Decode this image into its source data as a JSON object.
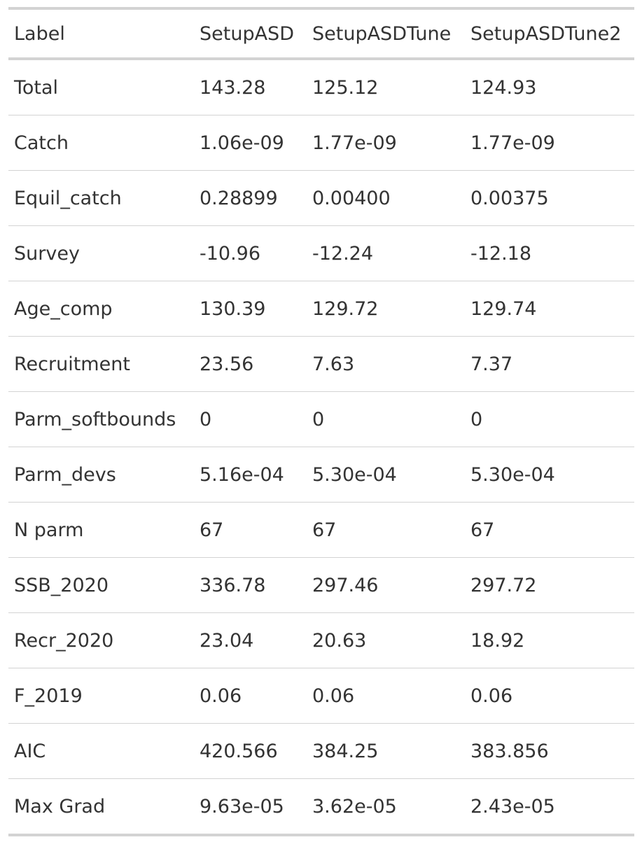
{
  "table": {
    "headers": [
      "Label",
      "SetupASD",
      "SetupASDTune",
      "SetupASDTune2"
    ],
    "rows": [
      [
        "Total",
        "143.28",
        "125.12",
        "124.93"
      ],
      [
        "Catch",
        "1.06e-09",
        "1.77e-09",
        "1.77e-09"
      ],
      [
        "Equil_catch",
        "0.28899",
        "0.00400",
        "0.00375"
      ],
      [
        "Survey",
        "-10.96",
        "-12.24",
        "-12.18"
      ],
      [
        "Age_comp",
        "130.39",
        "129.72",
        "129.74"
      ],
      [
        "Recruitment",
        "23.56",
        "7.63",
        "7.37"
      ],
      [
        "Parm_softbounds",
        "0",
        "0",
        "0"
      ],
      [
        "Parm_devs",
        "5.16e-04",
        "5.30e-04",
        "5.30e-04"
      ],
      [
        "N parm",
        "67",
        "67",
        "67"
      ],
      [
        "SSB_2020",
        "336.78",
        "297.46",
        "297.72"
      ],
      [
        "Recr_2020",
        "23.04",
        "20.63",
        "18.92"
      ],
      [
        "F_2019",
        "0.06",
        "0.06",
        "0.06"
      ],
      [
        "AIC",
        "420.566",
        "384.25",
        "383.856"
      ],
      [
        "Max Grad",
        "9.63e-05",
        "3.62e-05",
        "2.43e-05"
      ]
    ]
  }
}
